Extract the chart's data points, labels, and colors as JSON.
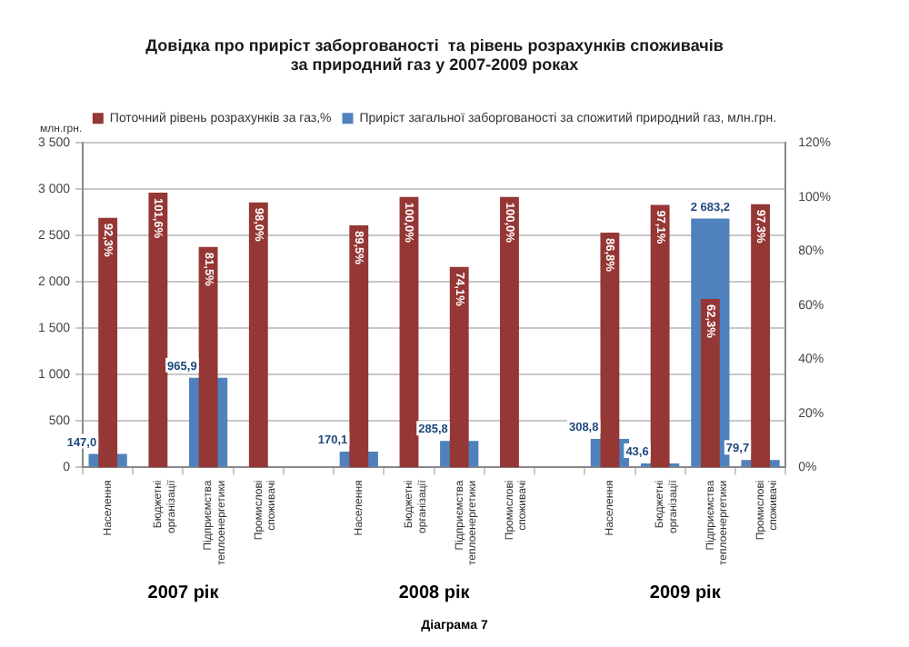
{
  "chart_data": {
    "type": "bar",
    "title": "Довідка про приріст заборгованості  та рівень розрахунків споживачів за природний газ у 2007-2009 роках",
    "ylabel": "млн.грн.",
    "categories": [
      "Населення",
      "Бюджетні організації",
      "Підприємства теплоенергетики",
      "Промислові споживачі",
      null,
      "Населення",
      "Бюджетні організації",
      "Підприємства теплоенергетики",
      "Промислові споживачі",
      null,
      "Населення",
      "Бюджетні організації",
      "Підприємства теплоенергетики",
      "Промислові споживачі"
    ],
    "series": [
      {
        "name": "Приріст загальної заборгованості за спожитий природний газ, млн.грн.",
        "color": "#4f81bd",
        "values": [
          147.0,
          null,
          965.9,
          null,
          null,
          170.1,
          null,
          285.8,
          null,
          null,
          308.8,
          43.6,
          2683.2,
          79.7
        ],
        "value_labels": [
          "147,0",
          null,
          "965,9",
          null,
          null,
          "170,1",
          null,
          "285,8",
          null,
          null,
          "308,8",
          "43,6",
          "2 683,2",
          "79,7"
        ]
      },
      {
        "name": "Поточний рівень розрахунків за газ,%",
        "color": "#953735",
        "axis": "y2",
        "values": [
          92.3,
          101.6,
          81.5,
          98.0,
          null,
          89.5,
          100.0,
          74.1,
          100.0,
          null,
          86.8,
          97.1,
          62.3,
          97.3
        ],
        "value_labels": [
          "92,3%",
          "101,6%",
          "81,5%",
          "98,0%",
          null,
          "89,5%",
          "100,0%",
          "74,1%",
          "100,0%",
          null,
          "86,8%",
          "97,1%",
          "62,3%",
          "97,3%"
        ]
      }
    ],
    "ylim": [
      0,
      3500
    ],
    "yticks": [
      0,
      500,
      {
        "value": 1000,
        "label": "1 000"
      },
      {
        "value": 1500,
        "label": "1 500"
      },
      {
        "value": 2000,
        "label": "2 000"
      },
      {
        "value": 2500,
        "label": "2 500"
      },
      {
        "value": 3000,
        "label": "3 000"
      },
      {
        "value": 3500,
        "label": "3 500"
      }
    ],
    "y2lim": [
      0,
      120
    ],
    "y2ticks": [
      {
        "value": 0,
        "label": "0%"
      },
      {
        "value": 20,
        "label": "20%"
      },
      {
        "value": 40,
        "label": "40%"
      },
      {
        "value": 60,
        "label": "60%"
      },
      {
        "value": 80,
        "label": "80%"
      },
      {
        "value": 100,
        "label": "100%"
      },
      {
        "value": 120,
        "label": "120%"
      }
    ],
    "grid": "y",
    "legend": "top",
    "annotations": [
      "2007 рік",
      "2008 рік",
      "2009 рік",
      "Діаграма 7"
    ]
  }
}
